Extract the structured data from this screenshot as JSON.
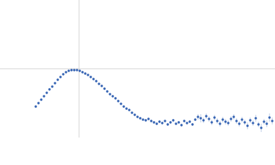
{
  "chart_data": {
    "type": "scatter",
    "xlim": [
      0,
      4
    ],
    "ylim": [
      0,
      2
    ],
    "reference_lines": {
      "x": 1.15,
      "y": 1.0,
      "color": "#d0d0d0"
    },
    "x": [
      0.52,
      0.56,
      0.6,
      0.64,
      0.68,
      0.72,
      0.76,
      0.8,
      0.84,
      0.88,
      0.92,
      0.96,
      1.0,
      1.04,
      1.08,
      1.12,
      1.16,
      1.2,
      1.24,
      1.28,
      1.32,
      1.36,
      1.4,
      1.44,
      1.48,
      1.52,
      1.56,
      1.6,
      1.64,
      1.68,
      1.72,
      1.76,
      1.8,
      1.84,
      1.88,
      1.92,
      1.96,
      2.0,
      2.04,
      2.08,
      2.12,
      2.16,
      2.2,
      2.24,
      2.28,
      2.32,
      2.36,
      2.4,
      2.44,
      2.48,
      2.52,
      2.56,
      2.6,
      2.64,
      2.68,
      2.72,
      2.76,
      2.8,
      2.84,
      2.88,
      2.92,
      2.96,
      3.0,
      3.04,
      3.08,
      3.12,
      3.16,
      3.2,
      3.24,
      3.28,
      3.32,
      3.36,
      3.4,
      3.44,
      3.48,
      3.52,
      3.56,
      3.6,
      3.64,
      3.68,
      3.72,
      3.76,
      3.8,
      3.84,
      3.88,
      3.92,
      3.96
    ],
    "series": [
      {
        "color": "#3563b3",
        "error_color": "#a9bde0",
        "values": [
          0.45,
          0.5,
          0.55,
          0.6,
          0.65,
          0.7,
          0.74,
          0.79,
          0.84,
          0.88,
          0.92,
          0.95,
          0.97,
          0.98,
          0.98,
          0.98,
          0.97,
          0.95,
          0.93,
          0.91,
          0.88,
          0.85,
          0.82,
          0.78,
          0.75,
          0.71,
          0.67,
          0.63,
          0.6,
          0.57,
          0.53,
          0.49,
          0.45,
          0.42,
          0.4,
          0.36,
          0.33,
          0.3,
          0.28,
          0.26,
          0.25,
          0.27,
          0.24,
          0.22,
          0.2,
          0.23,
          0.21,
          0.24,
          0.19,
          0.22,
          0.25,
          0.2,
          0.22,
          0.18,
          0.24,
          0.21,
          0.23,
          0.19,
          0.26,
          0.3,
          0.28,
          0.25,
          0.31,
          0.27,
          0.22,
          0.29,
          0.24,
          0.2,
          0.26,
          0.23,
          0.21,
          0.27,
          0.3,
          0.24,
          0.2,
          0.26,
          0.22,
          0.17,
          0.25,
          0.21,
          0.28,
          0.19,
          0.14,
          0.23,
          0.2,
          0.29,
          0.24
        ],
        "errors": [
          0.005,
          0.005,
          0.005,
          0.005,
          0.005,
          0.005,
          0.005,
          0.005,
          0.005,
          0.005,
          0.005,
          0.005,
          0.005,
          0.005,
          0.005,
          0.005,
          0.005,
          0.005,
          0.005,
          0.005,
          0.005,
          0.005,
          0.005,
          0.005,
          0.005,
          0.005,
          0.005,
          0.005,
          0.005,
          0.005,
          0.01,
          0.01,
          0.01,
          0.01,
          0.01,
          0.01,
          0.01,
          0.01,
          0.01,
          0.01,
          0.02,
          0.02,
          0.02,
          0.02,
          0.02,
          0.02,
          0.02,
          0.02,
          0.02,
          0.02,
          0.02,
          0.02,
          0.02,
          0.02,
          0.02,
          0.02,
          0.02,
          0.02,
          0.02,
          0.04,
          0.06,
          0.04,
          0.04,
          0.04,
          0.04,
          0.04,
          0.04,
          0.04,
          0.04,
          0.04,
          0.04,
          0.04,
          0.04,
          0.04,
          0.04,
          0.04,
          0.04,
          0.05,
          0.04,
          0.04,
          0.05,
          0.04,
          0.06,
          0.04,
          0.05,
          0.06,
          0.05
        ]
      }
    ]
  }
}
